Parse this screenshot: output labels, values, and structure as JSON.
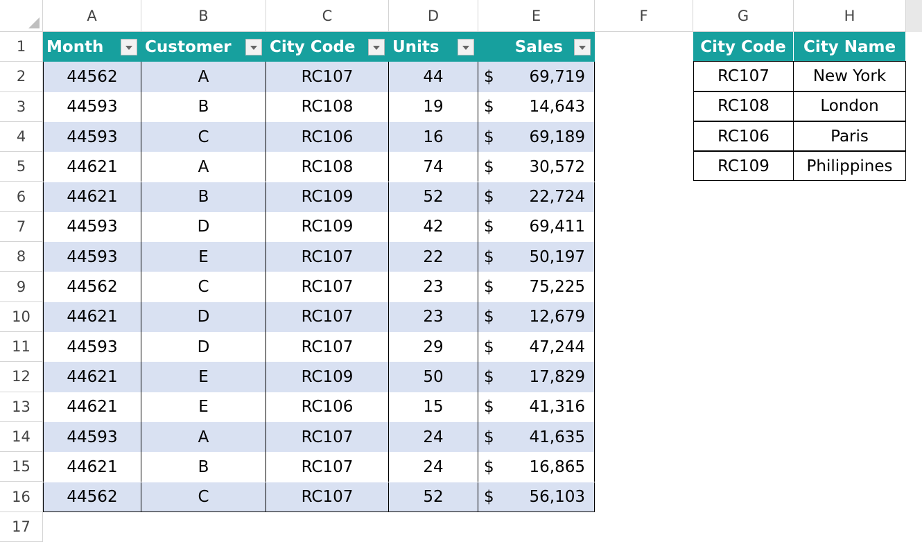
{
  "sheet": {
    "columns": [
      "A",
      "B",
      "C",
      "D",
      "E",
      "F",
      "G",
      "H"
    ],
    "row_numbers": [
      1,
      2,
      3,
      4,
      5,
      6,
      7,
      8,
      9,
      10,
      11,
      12,
      13,
      14,
      15,
      16,
      17
    ]
  },
  "table": {
    "header": [
      "Month",
      "Customer",
      "City Code",
      "Units",
      "Sales"
    ],
    "rows": [
      [
        "44562",
        "A",
        "RC107",
        "44",
        "$",
        "69,719"
      ],
      [
        "44593",
        "B",
        "RC108",
        "19",
        "$",
        "14,643"
      ],
      [
        "44593",
        "C",
        "RC106",
        "16",
        "$",
        "69,189"
      ],
      [
        "44621",
        "A",
        "RC108",
        "74",
        "$",
        "30,572"
      ],
      [
        "44621",
        "B",
        "RC109",
        "52",
        "$",
        "22,724"
      ],
      [
        "44593",
        "D",
        "RC109",
        "42",
        "$",
        "69,411"
      ],
      [
        "44593",
        "E",
        "RC107",
        "22",
        "$",
        "50,197"
      ],
      [
        "44562",
        "C",
        "RC107",
        "23",
        "$",
        "75,225"
      ],
      [
        "44621",
        "D",
        "RC107",
        "23",
        "$",
        "12,679"
      ],
      [
        "44593",
        "D",
        "RC107",
        "29",
        "$",
        "47,244"
      ],
      [
        "44621",
        "E",
        "RC109",
        "50",
        "$",
        "17,829"
      ],
      [
        "44621",
        "E",
        "RC106",
        "15",
        "$",
        "41,316"
      ],
      [
        "44593",
        "A",
        "RC107",
        "24",
        "$",
        "41,635"
      ],
      [
        "44621",
        "B",
        "RC107",
        "24",
        "$",
        "16,865"
      ],
      [
        "44562",
        "C",
        "RC107",
        "52",
        "$",
        "56,103"
      ]
    ]
  },
  "lookup": {
    "header": [
      "City Code",
      "City Name"
    ],
    "rows": [
      [
        "RC107",
        "New York"
      ],
      [
        "RC108",
        "London"
      ],
      [
        "RC106",
        "Paris"
      ],
      [
        "RC109",
        "Philippines"
      ]
    ]
  }
}
